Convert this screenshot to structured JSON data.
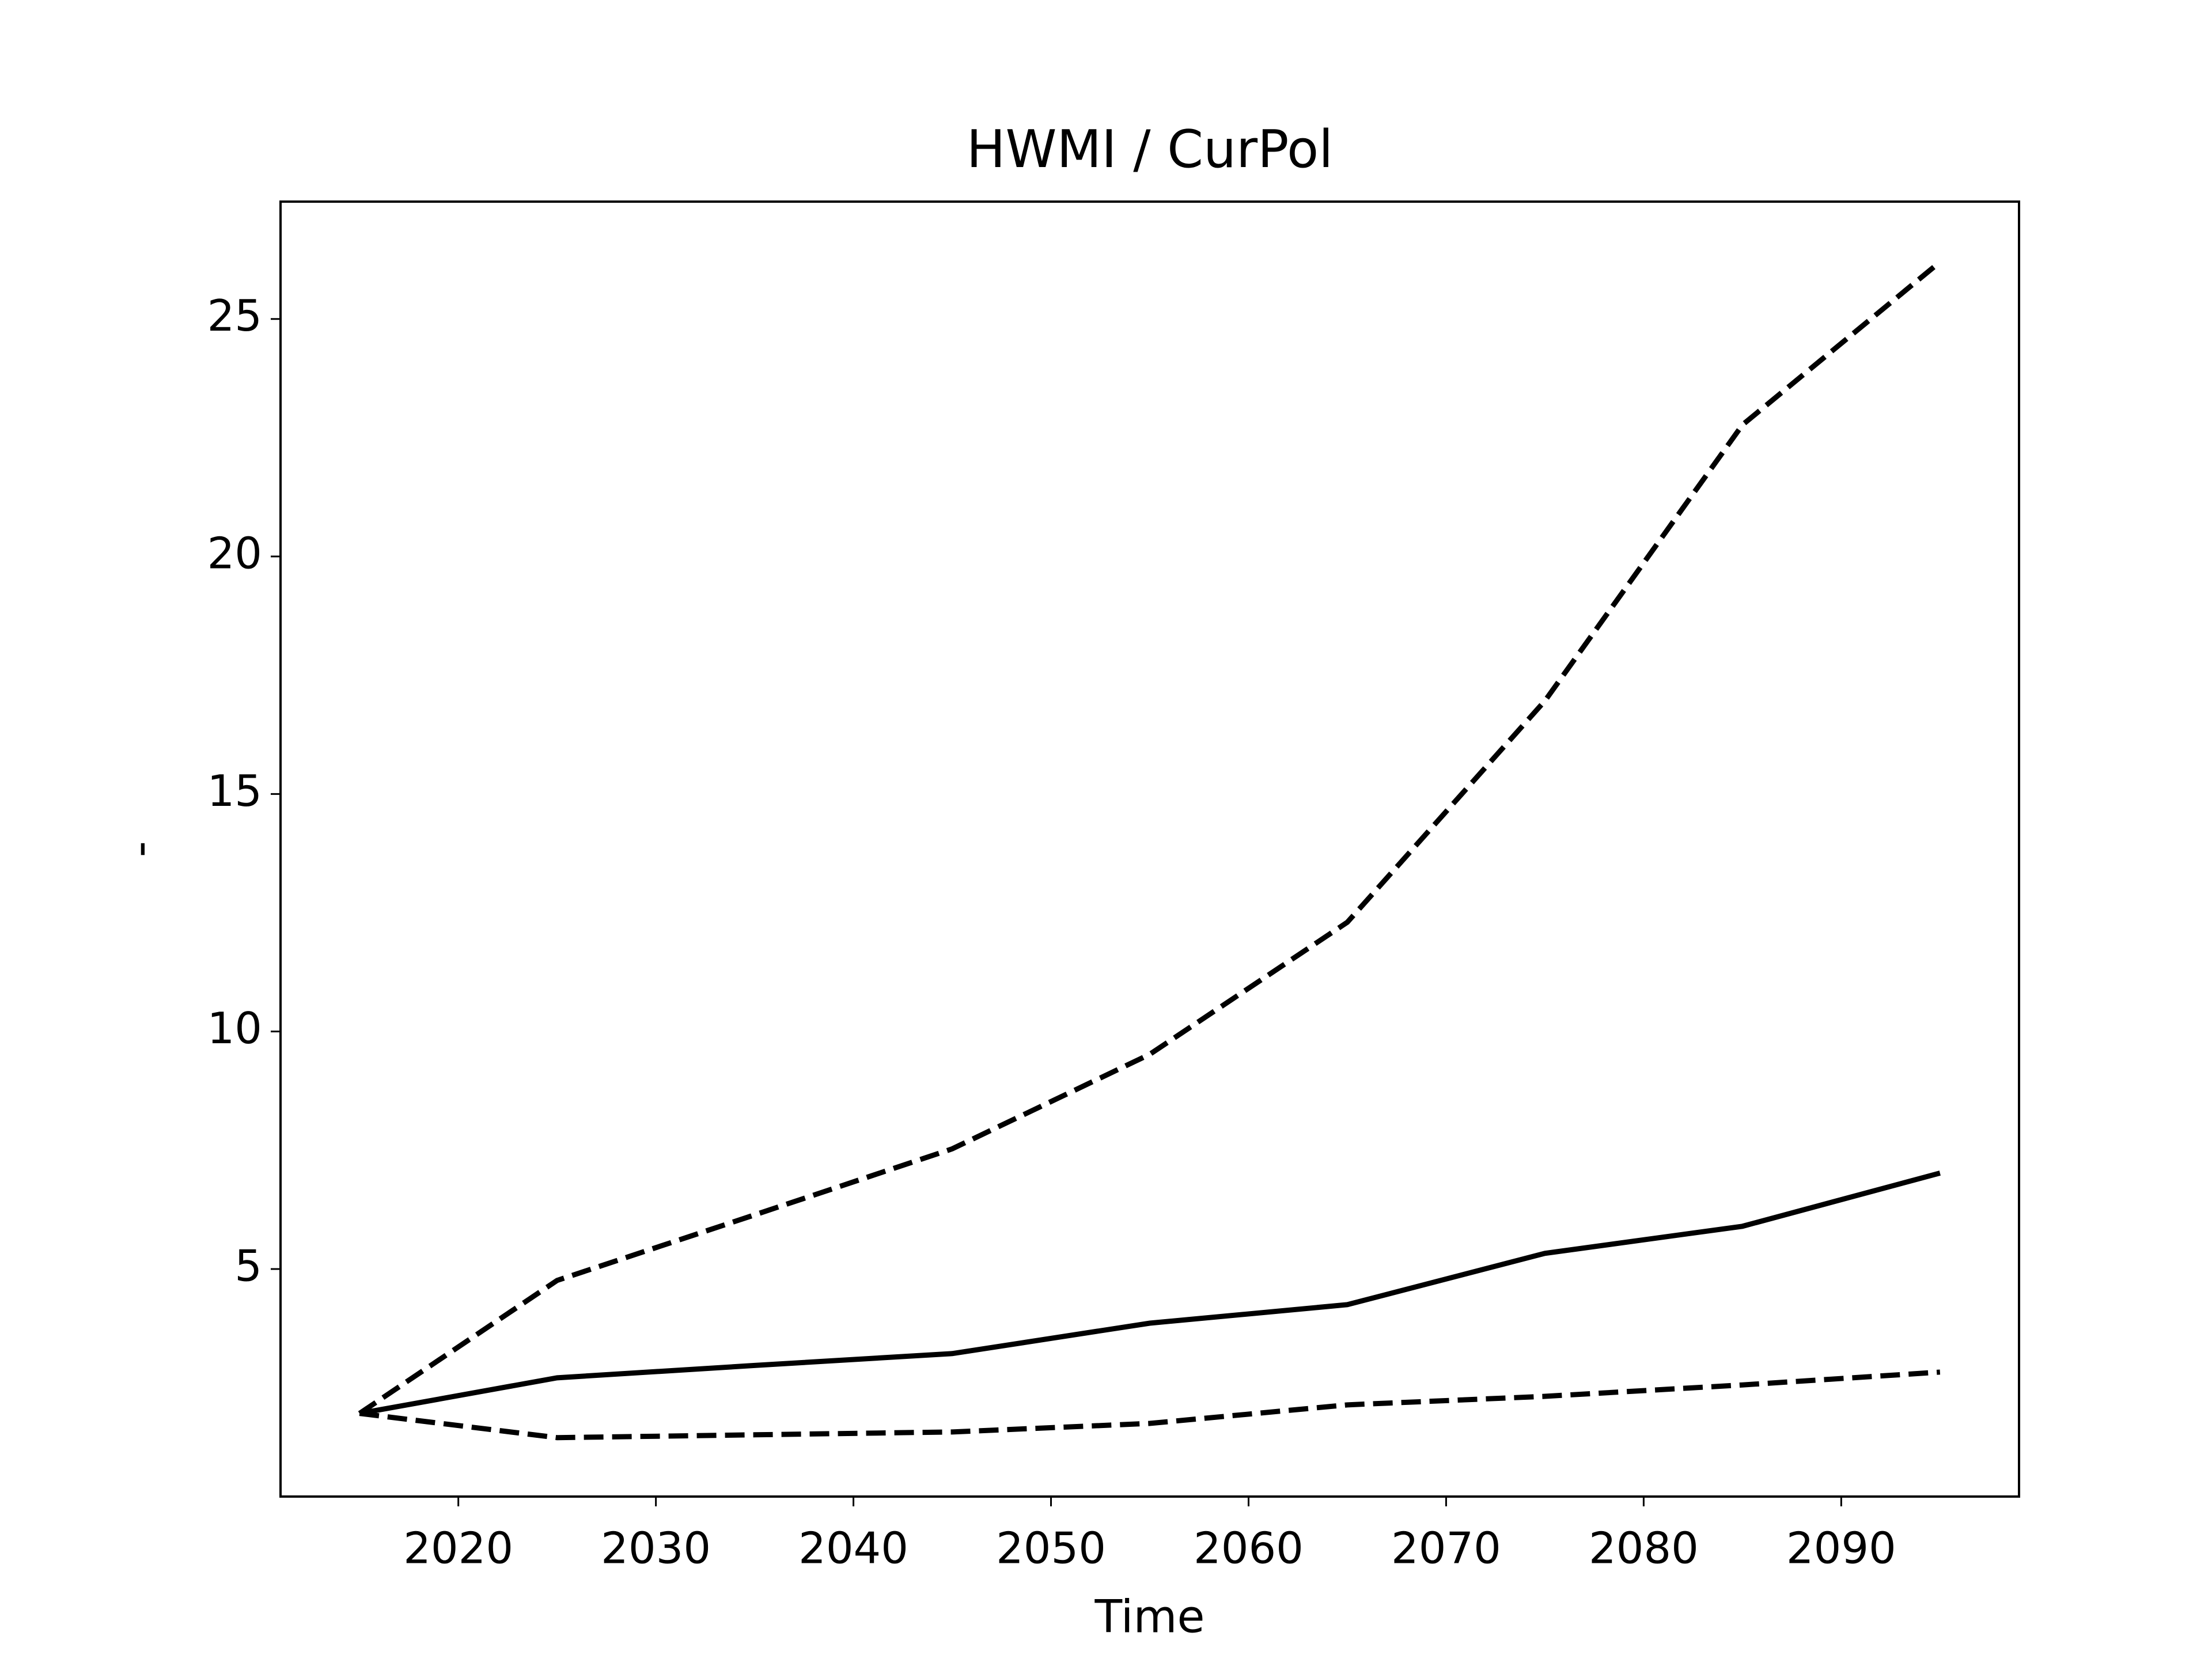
{
  "chart_data": {
    "type": "line",
    "title": "HWMI / CurPol",
    "x_label": "Time",
    "y_label": "-",
    "x": [
      2015,
      2025,
      2035,
      2045,
      2055,
      2065,
      2075,
      2085,
      2095
    ],
    "series": [
      {
        "color": "#000000",
        "dashed": false,
        "values": [
          1.96,
          2.71,
          2.97,
          3.22,
          3.86,
          4.25,
          5.33,
          5.9,
          7.02
        ]
      },
      {
        "color": "#000000",
        "dashed": true,
        "values": [
          1.96,
          4.76,
          6.14,
          7.53,
          9.52,
          12.3,
          16.96,
          22.77,
          26.2
        ]
      },
      {
        "color": "#000000",
        "dashed": true,
        "values": [
          1.96,
          1.45,
          1.51,
          1.57,
          1.75,
          2.14,
          2.32,
          2.56,
          2.83
        ]
      }
    ],
    "xlim": [
      2011,
      2099
    ],
    "xticks": [
      2020,
      2030,
      2040,
      2050,
      2060,
      2070,
      2080,
      2090
    ],
    "ylim": [
      0.21,
      27.47
    ],
    "yticks": [
      5,
      10,
      15,
      20,
      25
    ],
    "grid": false
  }
}
